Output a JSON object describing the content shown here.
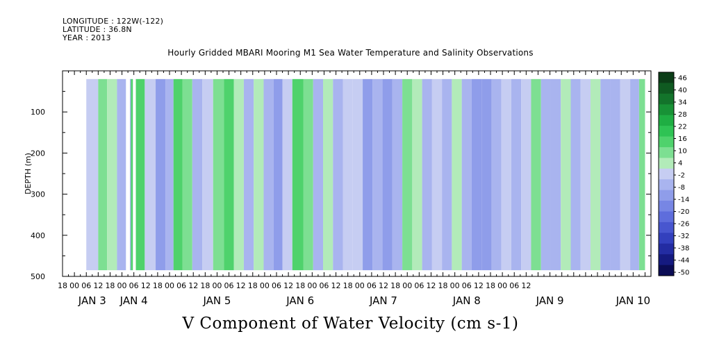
{
  "header": {
    "longitude": "LONGITUDE : 122W(-122)",
    "latitude": "LATITUDE : 36.8N",
    "year": "YEAR : 2013"
  },
  "chart_data": {
    "type": "heatmap",
    "title": "Hourly Gridded MBARI Mooring M1 Sea Water Temperature and Salinity Observations",
    "xlabel": "V Component of Water Velocity (cm s-1)",
    "ylabel": "DEPTH (m)",
    "ylim": [
      500,
      0
    ],
    "y_ticks": [
      100,
      200,
      300,
      400,
      500
    ],
    "hour_tick_labels": [
      "18",
      "00",
      "06",
      "12",
      "18",
      "00",
      "06",
      "12",
      "18",
      "00",
      "06",
      "12",
      "18",
      "00",
      "06",
      "12",
      "18",
      "00",
      "06",
      "12",
      "18",
      "00",
      "06",
      "12",
      "18",
      "00",
      "06",
      "12",
      "18",
      "00",
      "06",
      "12",
      "18",
      "00",
      "06",
      "12",
      "18",
      "00",
      "06",
      "12"
    ],
    "day_labels": [
      {
        "text": "JAN  3",
        "hour": 9
      },
      {
        "text": "JAN  4",
        "hour": 30
      },
      {
        "text": "JAN  5",
        "hour": 72
      },
      {
        "text": "JAN  6",
        "hour": 114
      },
      {
        "text": "JAN  7",
        "hour": 156
      },
      {
        "text": "JAN  8",
        "hour": 198
      },
      {
        "text": "JAN  9",
        "hour": 240
      },
      {
        "text": "JAN 10",
        "hour": 282
      }
    ],
    "colorbar": {
      "labels": [
        "46",
        "40",
        "34",
        "28",
        "22",
        "16",
        "10",
        "4",
        "-2",
        "-8",
        "-14",
        "-20",
        "-26",
        "-32",
        "-38",
        "-44",
        "-50"
      ],
      "colors": [
        "#0b3d17",
        "#0f5a21",
        "#13742b",
        "#189236",
        "#1fae43",
        "#2fc354",
        "#4fd26c",
        "#7ddf92",
        "#b2ebb9",
        "#c6cdf2",
        "#a9b4ef",
        "#8f9dea",
        "#7786e4",
        "#5e6ddc",
        "#4856cf",
        "#3340bd",
        "#232ca2",
        "#151a80",
        "#0b0c55"
      ]
    },
    "x_hour_range": [
      -6,
      291
    ],
    "data_hour_range": [
      6,
      288
    ],
    "data_depth_range": [
      20,
      485
    ],
    "gaps_hours": [
      [
        26,
        28
      ],
      [
        29.5,
        31
      ]
    ],
    "velocity_columns": [
      {
        "hour": 10,
        "v": 2
      },
      {
        "hour": 14,
        "v": 10
      },
      {
        "hour": 19,
        "v": 4
      },
      {
        "hour": 24,
        "v": -6
      },
      {
        "hour": 33,
        "v": 14
      },
      {
        "hour": 38,
        "v": 2
      },
      {
        "hour": 44,
        "v": -10
      },
      {
        "hour": 48,
        "v": -4
      },
      {
        "hour": 52,
        "v": 16
      },
      {
        "hour": 57,
        "v": 8
      },
      {
        "hour": 62,
        "v": -6
      },
      {
        "hour": 67,
        "v": -2
      },
      {
        "hour": 73,
        "v": 12
      },
      {
        "hour": 78,
        "v": 16
      },
      {
        "hour": 83,
        "v": 4
      },
      {
        "hour": 88,
        "v": -8
      },
      {
        "hour": 93,
        "v": 6
      },
      {
        "hour": 98,
        "v": -4
      },
      {
        "hour": 103,
        "v": -12
      },
      {
        "hour": 107,
        "v": 0
      },
      {
        "hour": 113,
        "v": 18
      },
      {
        "hour": 118,
        "v": 10
      },
      {
        "hour": 123,
        "v": -4
      },
      {
        "hour": 128,
        "v": 6
      },
      {
        "hour": 133,
        "v": -8
      },
      {
        "hour": 138,
        "v": -2
      },
      {
        "hour": 143,
        "v": 2
      },
      {
        "hour": 148,
        "v": -10
      },
      {
        "hour": 153,
        "v": -4
      },
      {
        "hour": 158,
        "v": -12
      },
      {
        "hour": 163,
        "v": -6
      },
      {
        "hour": 168,
        "v": 8
      },
      {
        "hour": 173,
        "v": 4
      },
      {
        "hour": 178,
        "v": -6
      },
      {
        "hour": 183,
        "v": 2
      },
      {
        "hour": 188,
        "v": -8
      },
      {
        "hour": 193,
        "v": 6
      },
      {
        "hour": 198,
        "v": -4
      },
      {
        "hour": 203,
        "v": -10
      },
      {
        "hour": 208,
        "v": -14
      },
      {
        "hour": 213,
        "v": -8
      },
      {
        "hour": 218,
        "v": -2
      },
      {
        "hour": 223,
        "v": -6
      },
      {
        "hour": 228,
        "v": 2
      },
      {
        "hour": 233,
        "v": 8
      },
      {
        "hour": 238,
        "v": -4
      },
      {
        "hour": 243,
        "v": -8
      },
      {
        "hour": 248,
        "v": 4
      },
      {
        "hour": 253,
        "v": -6
      },
      {
        "hour": 258,
        "v": -2
      },
      {
        "hour": 263,
        "v": 6
      },
      {
        "hour": 268,
        "v": -4
      },
      {
        "hour": 273,
        "v": -8
      },
      {
        "hour": 278,
        "v": 2
      },
      {
        "hour": 283,
        "v": -4
      },
      {
        "hour": 287,
        "v": 8
      }
    ]
  }
}
